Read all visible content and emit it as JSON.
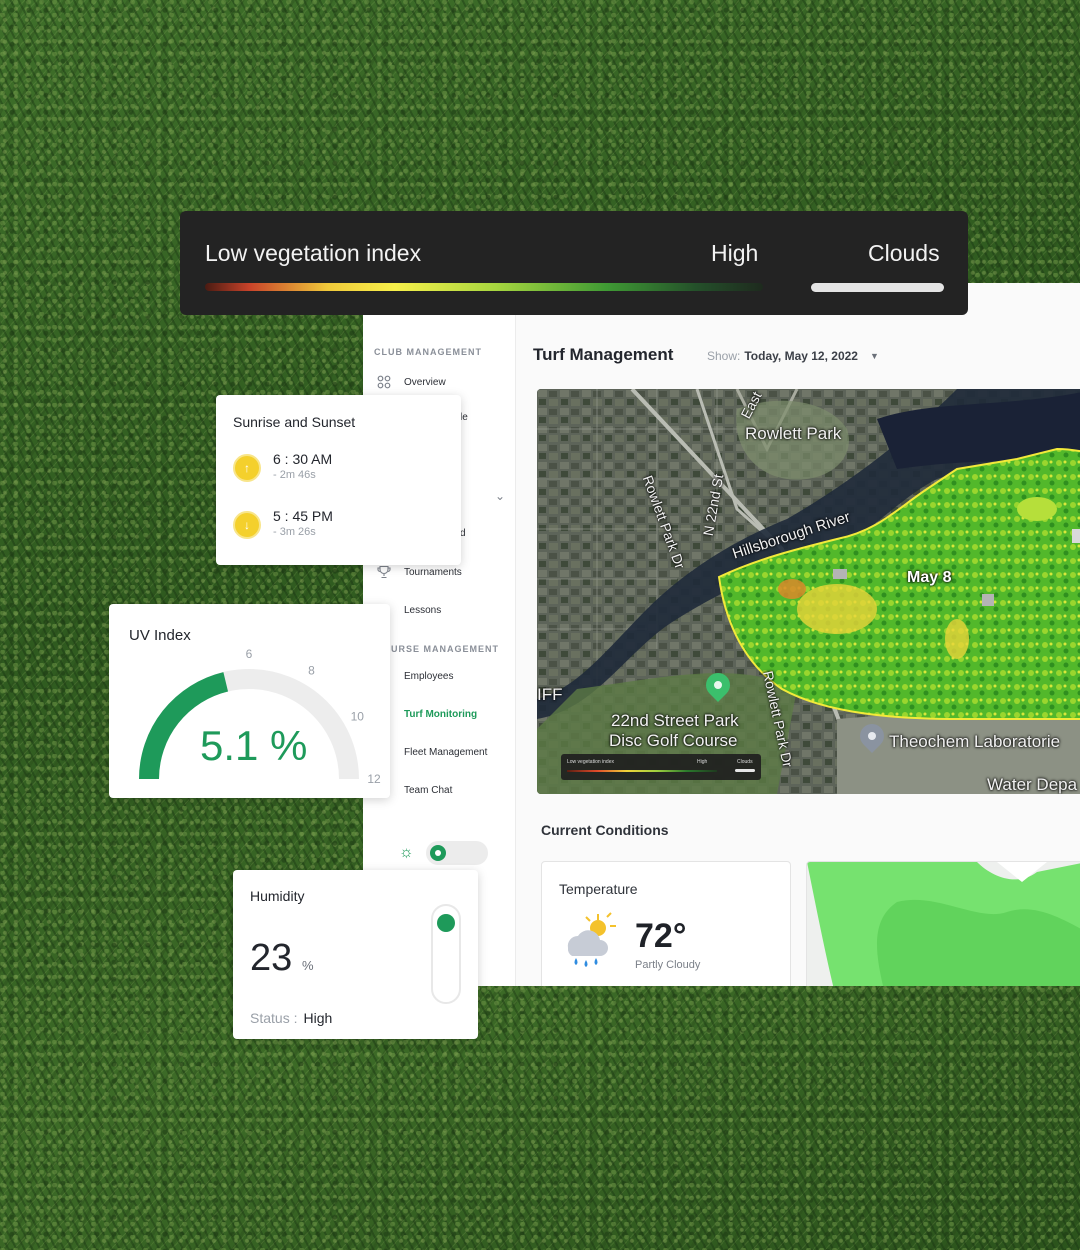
{
  "legend": {
    "low_label": "Low vegetation index",
    "high_label": "High",
    "clouds_label": "Clouds"
  },
  "sidebar": {
    "section_club": "CLUB MANAGEMENT",
    "section_course": "URSE MANAGEMENT",
    "items": [
      {
        "label": "Overview",
        "icon": "grid-icon"
      },
      {
        "label": "le",
        "icon": "calendar-icon"
      },
      {
        "label": "d",
        "icon": "flag-icon"
      },
      {
        "label": "Tournaments",
        "icon": "trophy-icon"
      },
      {
        "label": "Lessons",
        "icon": "book-icon"
      },
      {
        "label": "Employees",
        "icon": "users-icon"
      },
      {
        "label": "Turf Monitoring",
        "icon": "turf-icon",
        "active": true
      },
      {
        "label": "Fleet Management",
        "icon": "cart-icon"
      },
      {
        "label": "Team Chat",
        "icon": "chat-icon"
      }
    ]
  },
  "header": {
    "title": "Turf Management",
    "show_label": "Show:",
    "show_value": "Today, May 12, 2022"
  },
  "map": {
    "labels": {
      "rowlett_park": "Rowlett Park",
      "east": "East",
      "rowlett_park_dr": "Rowlett Park Dr",
      "n22nd": "N 22nd St",
      "hillsborough": "Hillsborough River",
      "may8": "May 8",
      "iff": "IFF",
      "disc_golf_1": "22nd Street Park",
      "disc_golf_2": "Disc Golf Course",
      "rowlett_park_dr_2": "Rowlett Park Dr",
      "theochem": "Theochem Laboratorie",
      "water": "Water Depa"
    },
    "mini_legend": {
      "low": "Low vegetation index",
      "high": "High",
      "clouds": "Clouds"
    }
  },
  "conditions": {
    "title": "Current Conditions",
    "temperature": {
      "title": "Temperature",
      "value": "72°",
      "description": "Partly Cloudy",
      "icon": "partly-cloudy-rain-icon"
    }
  },
  "sunrise_sunset": {
    "title": "Sunrise and Sunset",
    "sunrise": {
      "time": "6 : 30 AM",
      "sub": "- 2m 46s",
      "icon": "sunrise-arrow-up-icon"
    },
    "sunset": {
      "time": "5 : 45 PM",
      "sub": "- 3m 26s",
      "icon": "sunset-arrow-down-icon"
    }
  },
  "uv_index": {
    "title": "UV Index",
    "value": "5.1 %",
    "level": 5.1,
    "ticks": [
      "6",
      "8",
      "10",
      "12"
    ],
    "max": 12
  },
  "humidity": {
    "title": "Humidity",
    "value": "23",
    "unit": "%",
    "status_label": "Status :",
    "status_value": "High"
  },
  "colors": {
    "accent": "#1e9a5a",
    "legend_bg": "#232323",
    "sun_badge": "#f4d02c"
  }
}
